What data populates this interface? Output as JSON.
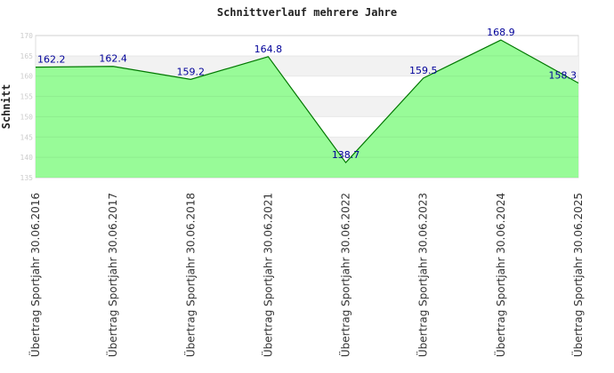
{
  "chart_data": {
    "type": "area",
    "title": "Schnittverlauf mehrere Jahre",
    "xlabel": "",
    "ylabel": "Schnitt",
    "ylim": [
      135,
      170
    ],
    "yticks": [
      135,
      140,
      145,
      150,
      155,
      160,
      165,
      170
    ],
    "categories": [
      "Übertrag Sportjahr 30.06.2016",
      "Übertrag Sportjahr 30.06.2017",
      "Übertrag Sportjahr 30.06.2018",
      "Übertrag Sportjahr 30.06.2021",
      "Übertrag Sportjahr 30.06.2022",
      "Übertrag Sportjahr 30.06.2023",
      "Übertrag Sportjahr 30.06.2024",
      "Übertrag Sportjahr 30.06.2025"
    ],
    "values": [
      162.2,
      162.4,
      159.2,
      164.8,
      138.7,
      159.5,
      168.9,
      158.3
    ],
    "labels": [
      "162.2",
      "162.4",
      "159.2",
      "164.8",
      "138.7",
      "159.5",
      "168.9",
      "158.3"
    ],
    "colors": {
      "fill": "#98fb98",
      "line": "#007700",
      "label": "#000099"
    }
  }
}
